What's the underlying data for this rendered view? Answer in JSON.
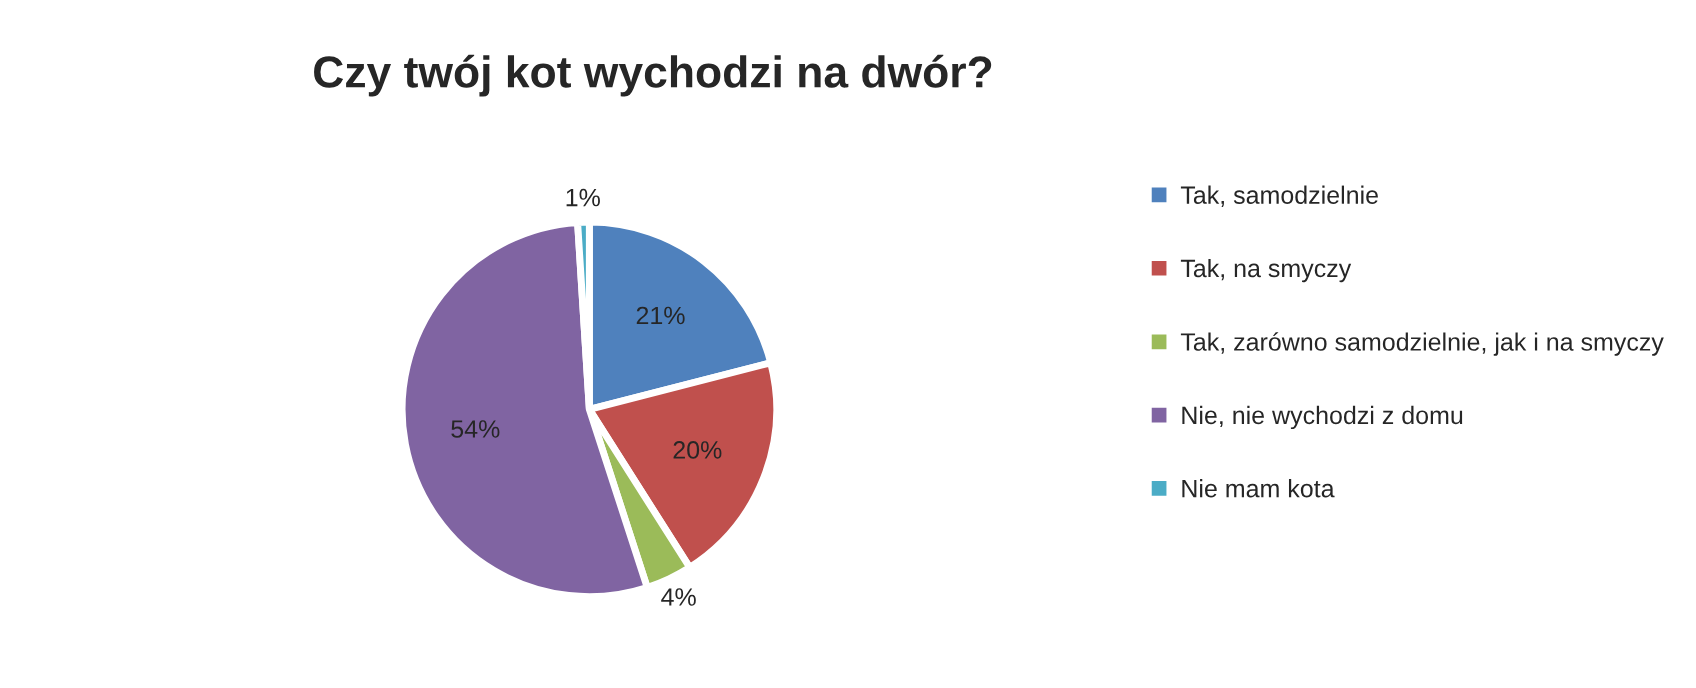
{
  "chart_data": {
    "type": "pie",
    "title": "Czy twój kot wychodzi na dwór?",
    "categories": [
      "Tak, samodzielnie",
      "Tak, na smyczy",
      "Tak, zarówno samodzielnie, jak i na smyczy",
      "Nie, nie wychodzi z domu",
      "Nie mam kota"
    ],
    "values": [
      21,
      20,
      4,
      54,
      1
    ],
    "colors": [
      "#4f81bd",
      "#c0504d",
      "#9bbb59",
      "#8064a2",
      "#4bacc6"
    ],
    "value_labels": [
      "21%",
      "20%",
      "4%",
      "54%",
      "1%"
    ],
    "legend": "right"
  }
}
